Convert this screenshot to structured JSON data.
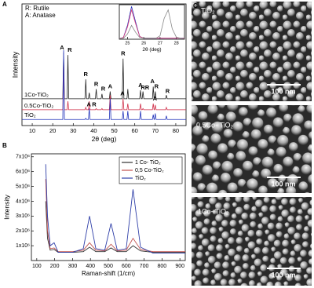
{
  "panel_labels": [
    "A",
    "B",
    "C"
  ],
  "chart_data": [
    {
      "type": "line",
      "ylabel": "Intensity",
      "xlabel": "2θ (deg)",
      "notes": [
        "R: Rutile",
        "A: Anatase"
      ],
      "xlim": [
        5,
        85
      ],
      "xticks": [
        10,
        20,
        30,
        40,
        50,
        60,
        70,
        80
      ],
      "ylim": [
        0,
        100
      ],
      "x": [
        5,
        24.9,
        25.3,
        25.7,
        27.0,
        27.4,
        27.8,
        35.7,
        36.1,
        36.5,
        37.4,
        37.8,
        38.2,
        40.8,
        41.2,
        41.6,
        43.6,
        44.0,
        44.4,
        47.6,
        48.0,
        48.4,
        53.9,
        54.3,
        54.7,
        56.2,
        56.6,
        57.0,
        62.4,
        62.8,
        63.2,
        63.6,
        64.0,
        64.4,
        68.6,
        69.0,
        69.4,
        69.6,
        70.0,
        70.4,
        75.0,
        75.4,
        75.8,
        85
      ],
      "series": [
        {
          "name": "1Co-TiO₂",
          "color": "#222222",
          "values": [
            22,
            22,
            60,
            22,
            22,
            58,
            22,
            22,
            38,
            22,
            22,
            27,
            22,
            22,
            30,
            22,
            22,
            26,
            22,
            22,
            28,
            22,
            22,
            55,
            22,
            22,
            30,
            22,
            22,
            29,
            22,
            22,
            28,
            22,
            22,
            32,
            22,
            22,
            28,
            22,
            22,
            25,
            22,
            22
          ]
        },
        {
          "name": "0.5Co-TiO₂",
          "color": "#d0304a",
          "values": [
            13,
            13,
            55,
            13,
            13,
            20,
            13,
            13,
            15,
            13,
            13,
            20,
            13,
            13,
            14,
            13,
            13,
            14,
            13,
            13,
            25,
            13,
            13,
            22,
            13,
            13,
            18,
            13,
            13,
            18,
            13,
            13,
            14,
            13,
            13,
            18,
            13,
            13,
            17,
            13,
            13,
            15,
            13,
            13
          ]
        },
        {
          "name": "TiO₂",
          "color": "#2233bb",
          "values": [
            5,
            5,
            62,
            5,
            5,
            5,
            5,
            5,
            6,
            5,
            5,
            14,
            5,
            5,
            5,
            5,
            5,
            5,
            5,
            5,
            22,
            5,
            5,
            12,
            5,
            5,
            12,
            5,
            5,
            12,
            5,
            5,
            5,
            5,
            5,
            9,
            5,
            5,
            10,
            5,
            5,
            8,
            5,
            5
          ]
        }
      ],
      "annotations": [
        {
          "text": "A",
          "x": 24.5,
          "y": 64
        },
        {
          "text": "R",
          "x": 28.3,
          "y": 62
        },
        {
          "text": "R",
          "x": 36.1,
          "y": 42
        },
        {
          "text": "R",
          "x": 41.2,
          "y": 34
        },
        {
          "text": "R",
          "x": 44.6,
          "y": 30
        },
        {
          "text": "A",
          "x": 48,
          "y": 32
        },
        {
          "text": "R",
          "x": 54.3,
          "y": 59
        },
        {
          "text": "A",
          "x": 62.8,
          "y": 33
        },
        {
          "text": "RR",
          "x": 65,
          "y": 31
        },
        {
          "text": "A",
          "x": 68.6,
          "y": 36
        },
        {
          "text": "R",
          "x": 70.6,
          "y": 32
        },
        {
          "text": "R",
          "x": 76,
          "y": 28
        },
        {
          "text": "A",
          "x": 37.6,
          "y": 17
        },
        {
          "text": "R",
          "x": 40.2,
          "y": 17
        },
        {
          "text": "A",
          "x": 54,
          "y": 26
        },
        {
          "text": "A",
          "x": 69.8,
          "y": 22
        }
      ]
    },
    {
      "type": "line",
      "xlabel": "2θ (deg)",
      "xlim": [
        24.5,
        28.5
      ],
      "xticks": [
        25,
        26,
        27,
        28
      ],
      "ylim": [
        0,
        100
      ],
      "x": [
        24.5,
        24.75,
        25,
        25.25,
        25.5,
        25.75,
        26,
        26.25,
        26.5,
        26.75,
        27,
        27.25,
        27.5,
        27.75,
        28,
        28.25,
        28.5
      ],
      "series": [
        {
          "color": "#2233bb",
          "values": [
            2,
            5,
            40,
            95,
            50,
            8,
            3,
            3,
            3,
            3,
            3,
            3,
            3,
            3,
            3,
            3,
            3
          ]
        },
        {
          "color": "#e0407a",
          "values": [
            2,
            5,
            35,
            85,
            45,
            8,
            3,
            3,
            3,
            3,
            3,
            3,
            3,
            3,
            3,
            3,
            3
          ]
        },
        {
          "color": "#888888",
          "values": [
            2,
            3,
            15,
            40,
            20,
            5,
            3,
            3,
            3,
            3,
            10,
            60,
            85,
            30,
            6,
            3,
            2
          ]
        }
      ]
    },
    {
      "type": "line",
      "ylabel": "Intensity",
      "xlabel": "Raman-shift (1/cm)",
      "xlim": [
        70,
        930
      ],
      "xticks": [
        100,
        200,
        300,
        400,
        500,
        600,
        700,
        800,
        900
      ],
      "ylim": [
        0,
        7200000
      ],
      "yticks": [
        {
          "value": 1000000,
          "label": "1x10⁶"
        },
        {
          "value": 2000000,
          "label": "2x10⁶"
        },
        {
          "value": 3000000,
          "label": "3x10⁶"
        },
        {
          "value": 4000000,
          "label": "4x10⁶"
        },
        {
          "value": 5000000,
          "label": "5x10⁶"
        },
        {
          "value": 6000000,
          "label": "6x10⁶"
        },
        {
          "value": 7000000,
          "label": "7x10⁶"
        }
      ],
      "legend": "upper right",
      "x": [
        150,
        160,
        175,
        197,
        220,
        300,
        360,
        395,
        430,
        480,
        515,
        550,
        600,
        638,
        680,
        750,
        850,
        930
      ],
      "series": [
        {
          "name": "1 Co- TiO₂",
          "color": "#333333",
          "values": [
            4000000,
            1500000,
            700000,
            750000,
            550000,
            550000,
            600000,
            900000,
            600000,
            600000,
            850000,
            600000,
            600000,
            1000000,
            650000,
            550000,
            550000,
            550000
          ]
        },
        {
          "name": "0,5 Co-TiO₂",
          "color": "#c0504d",
          "values": [
            5500000,
            2000000,
            800000,
            850000,
            600000,
            600000,
            700000,
            1200000,
            700000,
            650000,
            1100000,
            650000,
            700000,
            1500000,
            750000,
            600000,
            600000,
            600000
          ]
        },
        {
          "name": "TiO₂",
          "color": "#2f3fa8",
          "values": [
            6500000,
            3000000,
            1000000,
            1200000,
            550000,
            550000,
            800000,
            3000000,
            800000,
            700000,
            2500000,
            700000,
            800000,
            4800000,
            900000,
            500000,
            500000,
            500000
          ]
        }
      ]
    }
  ],
  "sem_images": [
    {
      "label": "TiO₂",
      "scale_bar": "100 nm"
    },
    {
      "label": "0.5Co- TiO₂",
      "scale_bar": "100 nm"
    },
    {
      "label": "1Co- TiO₂",
      "scale_bar": "100 nm"
    }
  ]
}
